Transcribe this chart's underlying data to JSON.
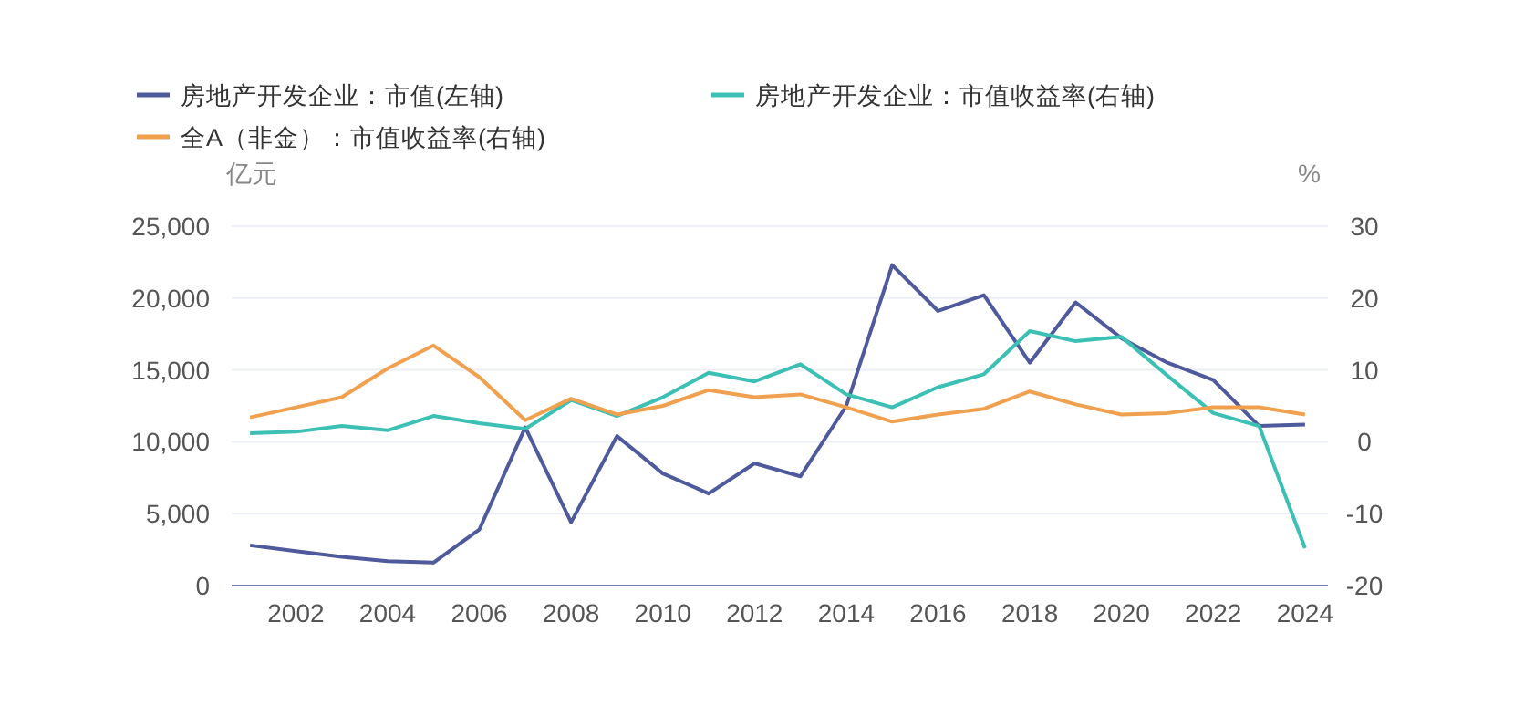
{
  "chart_data": {
    "type": "line",
    "x": [
      2001,
      2002,
      2003,
      2004,
      2005,
      2006,
      2007,
      2008,
      2009,
      2010,
      2011,
      2012,
      2013,
      2014,
      2015,
      2016,
      2017,
      2018,
      2019,
      2020,
      2021,
      2022,
      2023,
      2024
    ],
    "xlim": [
      2000.6,
      2024.5
    ],
    "xticks": [
      2002,
      2004,
      2006,
      2008,
      2010,
      2012,
      2014,
      2016,
      2018,
      2020,
      2022,
      2024
    ],
    "ylabel": "亿元",
    "y2label": "%",
    "ylim": [
      0,
      25000
    ],
    "yticks": [
      {
        "value": 0,
        "label": "0"
      },
      {
        "value": 5000,
        "label": "5,000"
      },
      {
        "value": 10000,
        "label": "10,000"
      },
      {
        "value": 15000,
        "label": "15,000"
      },
      {
        "value": 20000,
        "label": "20,000"
      },
      {
        "value": 25000,
        "label": "25,000"
      }
    ],
    "y2lim": [
      -20,
      30
    ],
    "y2ticks": [
      -20,
      -10,
      0,
      10,
      20,
      30
    ],
    "grid": "y",
    "legend": "top left",
    "marker": "none",
    "line_style": "solid",
    "series": [
      {
        "name": "房地产开发企业：市值(左轴)",
        "color": "#4e5a9c",
        "values": [
          2800,
          2400,
          2000,
          1700,
          1600,
          3900,
          11000,
          4400,
          10400,
          7800,
          6400,
          8500,
          7600,
          12500,
          22300,
          19100,
          20200,
          15500,
          19700,
          17200,
          15500,
          14300,
          11100,
          11200
        ]
      },
      {
        "name": "房地产开发企业：市值收益率(右轴)",
        "color": "#3cc0b4",
        "axis": "y2",
        "values": [
          1.2,
          1.4,
          2.2,
          1.6,
          3.6,
          2.6,
          1.8,
          5.8,
          3.6,
          6.2,
          9.6,
          8.4,
          10.8,
          6.6,
          4.8,
          7.6,
          9.4,
          15.4,
          14,
          14.6,
          9.2,
          4,
          2.2,
          -14.8
        ]
      },
      {
        "name": "全A（非金）：市值收益率(右轴)",
        "color": "#f0a150",
        "axis": "y2",
        "values": [
          3.4,
          4.8,
          6.2,
          10.2,
          13.4,
          9,
          3,
          6,
          3.8,
          5,
          7.2,
          6.2,
          6.6,
          4.8,
          2.8,
          3.8,
          4.6,
          7,
          5.2,
          3.8,
          4,
          4.8,
          4.8,
          3.8
        ]
      }
    ]
  }
}
